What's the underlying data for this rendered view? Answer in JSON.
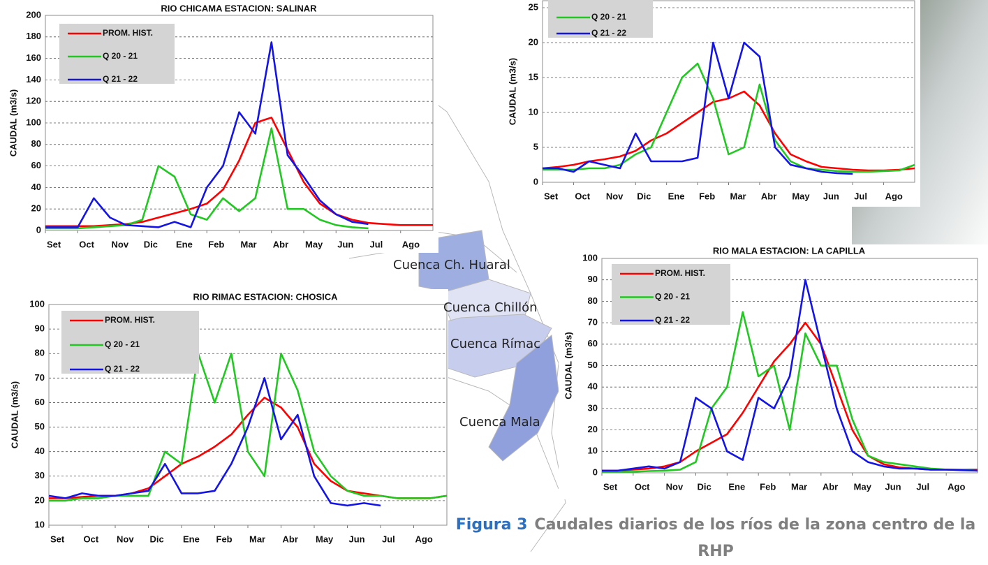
{
  "chart_data": [
    {
      "type": "line",
      "title": "RIO CHICAMA ESTACION: SALINAR",
      "ylabel": "CAUDAL (m3/s)",
      "x": [
        0,
        0.5,
        1,
        1.5,
        2,
        2.5,
        3,
        3.5,
        4,
        4.5,
        5,
        5.5,
        6,
        6.5,
        7,
        7.5,
        8,
        8.5,
        9,
        9.5,
        10,
        10.5,
        11,
        11.5,
        12
      ],
      "xlim": [
        0,
        12
      ],
      "xticks": [
        {
          "value": 0,
          "label": "Set"
        },
        {
          "value": 1,
          "label": "Oct"
        },
        {
          "value": 2,
          "label": "Nov"
        },
        {
          "value": 3,
          "label": "Dic"
        },
        {
          "value": 4,
          "label": "Ene"
        },
        {
          "value": 5,
          "label": "Feb"
        },
        {
          "value": 6,
          "label": "Mar"
        },
        {
          "value": 7,
          "label": "Abr"
        },
        {
          "value": 8,
          "label": "May"
        },
        {
          "value": 9,
          "label": "Jun"
        },
        {
          "value": 10,
          "label": "Jul"
        },
        {
          "value": 11,
          "label": "Ago"
        }
      ],
      "ylim": [
        0,
        200
      ],
      "yticks": [
        0,
        20,
        40,
        60,
        80,
        100,
        120,
        140,
        160,
        180,
        200
      ],
      "grid": true,
      "series": [
        {
          "name": "PROM. HIST.",
          "color": "#ff0000",
          "values": [
            4,
            4,
            4,
            4,
            5,
            6,
            8,
            12,
            16,
            20,
            25,
            38,
            65,
            100,
            105,
            75,
            45,
            25,
            15,
            10,
            7,
            6,
            5,
            5,
            5
          ]
        },
        {
          "name": "Q 20 - 21",
          "color": "#22c822",
          "values": [
            2,
            2,
            2,
            3,
            4,
            5,
            10,
            60,
            50,
            15,
            10,
            30,
            18,
            30,
            95,
            20,
            20,
            10,
            5,
            3,
            2,
            null,
            null,
            null,
            null
          ]
        },
        {
          "name": "Q 21 - 22",
          "color": "#1414e6",
          "values": [
            3,
            3,
            3,
            30,
            12,
            5,
            4,
            3,
            8,
            3,
            40,
            60,
            110,
            90,
            175,
            70,
            50,
            28,
            15,
            8,
            6,
            null,
            null,
            null,
            null
          ]
        }
      ]
    },
    {
      "type": "line",
      "ylabel": "CAUDAL (m3/s)",
      "x": [
        0,
        0.5,
        1,
        1.5,
        2,
        2.5,
        3,
        3.5,
        4,
        4.5,
        5,
        5.5,
        6,
        6.5,
        7,
        7.5,
        8,
        8.5,
        9,
        9.5,
        10,
        10.5,
        11,
        11.5,
        12
      ],
      "xlim": [
        0,
        12
      ],
      "xticks": [
        {
          "value": 0,
          "label": "Set"
        },
        {
          "value": 1,
          "label": "Oct"
        },
        {
          "value": 2,
          "label": "Nov"
        },
        {
          "value": 3,
          "label": "Dic"
        },
        {
          "value": 4,
          "label": "Ene"
        },
        {
          "value": 5,
          "label": "Feb"
        },
        {
          "value": 6,
          "label": "Mar"
        },
        {
          "value": 7,
          "label": "Abr"
        },
        {
          "value": 8,
          "label": "May"
        },
        {
          "value": 9,
          "label": "Jun"
        },
        {
          "value": 10,
          "label": "Jul"
        },
        {
          "value": 11,
          "label": "Ago"
        }
      ],
      "ylim": [
        0,
        26
      ],
      "yticks": [
        0,
        5,
        10,
        15,
        20,
        25
      ],
      "grid": true,
      "series": [
        {
          "color": "#ff0000",
          "values": [
            2,
            2.2,
            2.5,
            3,
            3.3,
            3.7,
            4.5,
            6,
            7,
            8.5,
            10,
            11.5,
            12,
            13,
            11,
            7,
            4,
            3,
            2.2,
            2,
            1.8,
            1.7,
            1.7,
            1.8,
            2
          ]
        },
        {
          "name": "Q 20 - 21",
          "color": "#22c822",
          "values": [
            1.8,
            1.8,
            1.8,
            2,
            2,
            2.5,
            4,
            5,
            10,
            15,
            17,
            12,
            4,
            5,
            14,
            6,
            3,
            2,
            1.8,
            1.6,
            1.5,
            1.5,
            1.6,
            1.7,
            2.5
          ]
        },
        {
          "name": "Q 21 - 22",
          "color": "#1414e6",
          "values": [
            2,
            2,
            1.5,
            3,
            2.5,
            2,
            7,
            3,
            3,
            3,
            3.5,
            20,
            12,
            20,
            18,
            5,
            2.5,
            2,
            1.5,
            1.3,
            1.2,
            null,
            null,
            null,
            null
          ]
        }
      ]
    },
    {
      "type": "line",
      "title": "RIO RIMAC ESTACION: CHOSICA",
      "ylabel": "CAUDAL (m3/s)",
      "x": [
        0,
        0.5,
        1,
        1.5,
        2,
        2.5,
        3,
        3.5,
        4,
        4.5,
        5,
        5.5,
        6,
        6.5,
        7,
        7.5,
        8,
        8.5,
        9,
        9.5,
        10,
        10.5,
        11,
        11.5,
        12
      ],
      "xlim": [
        0,
        12
      ],
      "xticks": [
        {
          "value": 0,
          "label": "Set"
        },
        {
          "value": 1,
          "label": "Oct"
        },
        {
          "value": 2,
          "label": "Nov"
        },
        {
          "value": 3,
          "label": "Dic"
        },
        {
          "value": 4,
          "label": "Ene"
        },
        {
          "value": 5,
          "label": "Feb"
        },
        {
          "value": 6,
          "label": "Mar"
        },
        {
          "value": 7,
          "label": "Abr"
        },
        {
          "value": 8,
          "label": "May"
        },
        {
          "value": 9,
          "label": "Jun"
        },
        {
          "value": 10,
          "label": "Jul"
        },
        {
          "value": 11,
          "label": "Ago"
        }
      ],
      "ylim": [
        10,
        100
      ],
      "yticks": [
        10,
        20,
        30,
        40,
        50,
        60,
        70,
        80,
        90,
        100
      ],
      "grid": true,
      "series": [
        {
          "name": "PROM. HIST.",
          "color": "#ff0000",
          "values": [
            21,
            21,
            21.5,
            22,
            22,
            23,
            25,
            30,
            35,
            38,
            42,
            47,
            55,
            62,
            58,
            50,
            35,
            28,
            24,
            23,
            22,
            21,
            21,
            21,
            22
          ]
        },
        {
          "name": "Q 20 - 21",
          "color": "#22c822",
          "values": [
            20,
            20,
            21,
            21,
            22,
            22,
            22,
            40,
            35,
            80,
            60,
            80,
            40,
            30,
            80,
            65,
            40,
            30,
            24,
            22,
            22,
            21,
            21,
            21,
            22
          ]
        },
        {
          "name": "Q 21 - 22",
          "color": "#1414e6",
          "values": [
            22,
            21,
            23,
            22,
            22,
            23,
            24,
            35,
            23,
            23,
            24,
            35,
            50,
            70,
            45,
            55,
            30,
            19,
            18,
            19,
            18,
            null,
            null,
            null,
            null
          ]
        }
      ]
    },
    {
      "type": "line",
      "title": "RIO MALA ESTACION: LA CAPILLA",
      "ylabel": "CAUDAL (m3/s)",
      "x": [
        0,
        0.5,
        1,
        1.5,
        2,
        2.5,
        3,
        3.5,
        4,
        4.5,
        5,
        5.5,
        6,
        6.5,
        7,
        7.5,
        8,
        8.5,
        9,
        9.5,
        10,
        10.5,
        11,
        11.5,
        12
      ],
      "xlim": [
        0,
        12
      ],
      "xticks": [
        {
          "value": 0,
          "label": "Set"
        },
        {
          "value": 1,
          "label": "Oct"
        },
        {
          "value": 2,
          "label": "Nov"
        },
        {
          "value": 3,
          "label": "Dic"
        },
        {
          "value": 4,
          "label": "Ene"
        },
        {
          "value": 5,
          "label": "Feb"
        },
        {
          "value": 6,
          "label": "Mar"
        },
        {
          "value": 7,
          "label": "Abr"
        },
        {
          "value": 8,
          "label": "May"
        },
        {
          "value": 9,
          "label": "Jun"
        },
        {
          "value": 10,
          "label": "Jul"
        },
        {
          "value": 11,
          "label": "Ago"
        }
      ],
      "ylim": [
        0,
        100
      ],
      "yticks": [
        0,
        10,
        20,
        30,
        40,
        50,
        60,
        70,
        80,
        90,
        100
      ],
      "grid": true,
      "series": [
        {
          "name": "PROM. HIST.",
          "color": "#ff0000",
          "values": [
            1,
            1,
            1.5,
            2,
            3,
            5,
            10,
            14,
            18,
            28,
            40,
            52,
            60,
            70,
            60,
            40,
            20,
            8,
            4,
            2.5,
            2,
            1.5,
            1.5,
            1.5,
            1.5
          ]
        },
        {
          "name": "Q 20 - 21",
          "color": "#22c822",
          "values": [
            0.5,
            0.5,
            0.5,
            0.8,
            1,
            1.5,
            5,
            30,
            40,
            75,
            45,
            50,
            20,
            65,
            50,
            50,
            25,
            8,
            5,
            4,
            3,
            2,
            1.5,
            1.5,
            1
          ]
        },
        {
          "name": "Q 21 - 22",
          "color": "#1414e6",
          "values": [
            1,
            1,
            2,
            3,
            2,
            5,
            35,
            30,
            10,
            6,
            35,
            30,
            45,
            90,
            60,
            30,
            10,
            5,
            3,
            2,
            2,
            1.5,
            1.5,
            1.2,
            1
          ]
        }
      ]
    }
  ],
  "map": {
    "labels": [
      "Cuenca Ch. Huaral",
      "Cuenca Chillón",
      "Cuenca Rímac",
      "Cuenca Mala"
    ]
  },
  "caption": {
    "label": "Figura 3",
    "text": "Caudales diarios de los ríos de la zona centro de la RHP"
  }
}
